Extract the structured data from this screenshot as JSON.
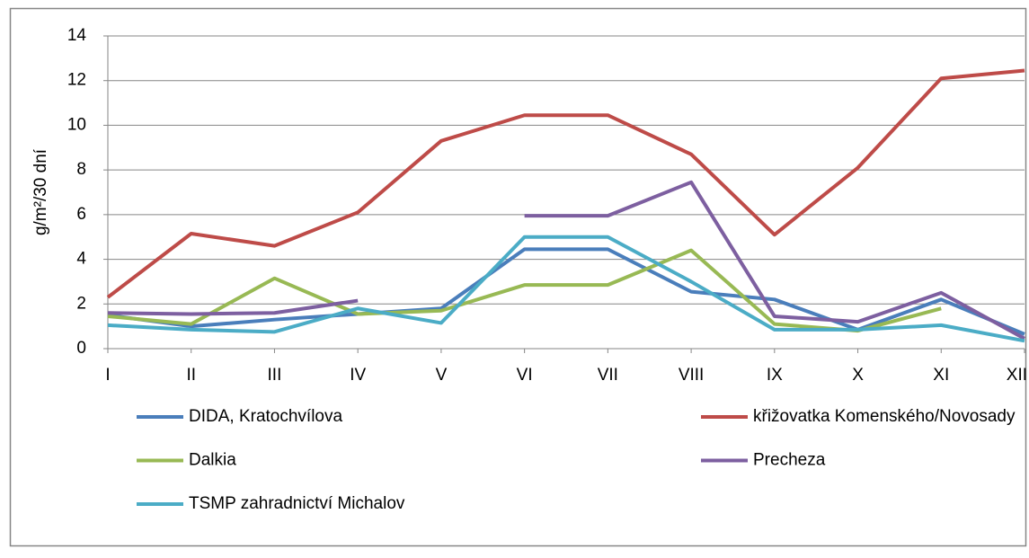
{
  "chart_data": {
    "type": "line",
    "y_label": "g/m²/30 dní",
    "categories": [
      "I",
      "II",
      "III",
      "IV",
      "V",
      "VI",
      "VII",
      "VIII",
      "IX",
      "X",
      "XI",
      "XII"
    ],
    "ylim": [
      0,
      14
    ],
    "yticks": [
      0,
      2,
      4,
      6,
      8,
      10,
      12,
      14
    ],
    "grid": true,
    "series": [
      {
        "name": "DIDA, Kratochvílova",
        "color": "#4a7ebb",
        "values": [
          1.5,
          1.0,
          1.3,
          1.55,
          1.8,
          4.45,
          4.45,
          2.55,
          2.2,
          0.85,
          2.2,
          0.65
        ]
      },
      {
        "name": "křižovatka Komenského/Novosady",
        "color": "#be4b48",
        "values": [
          2.3,
          5.15,
          4.6,
          6.1,
          9.3,
          10.45,
          10.45,
          8.7,
          5.1,
          8.1,
          12.1,
          12.45
        ]
      },
      {
        "name": "Dalkia",
        "color": "#98b954",
        "values": [
          1.45,
          1.1,
          3.15,
          1.55,
          1.7,
          2.85,
          2.85,
          4.4,
          1.1,
          0.8,
          1.8,
          null
        ]
      },
      {
        "name": "Precheza",
        "color": "#7d5fa0",
        "values": [
          1.6,
          1.55,
          1.6,
          2.15,
          null,
          5.95,
          5.95,
          7.45,
          1.45,
          1.2,
          2.5,
          0.45
        ]
      },
      {
        "name": "TSMP zahradnictví Michalov",
        "color": "#4bacc6",
        "values": [
          1.05,
          0.85,
          0.75,
          1.8,
          1.15,
          5.0,
          5.0,
          3.0,
          0.85,
          0.85,
          1.05,
          0.35
        ]
      }
    ]
  }
}
